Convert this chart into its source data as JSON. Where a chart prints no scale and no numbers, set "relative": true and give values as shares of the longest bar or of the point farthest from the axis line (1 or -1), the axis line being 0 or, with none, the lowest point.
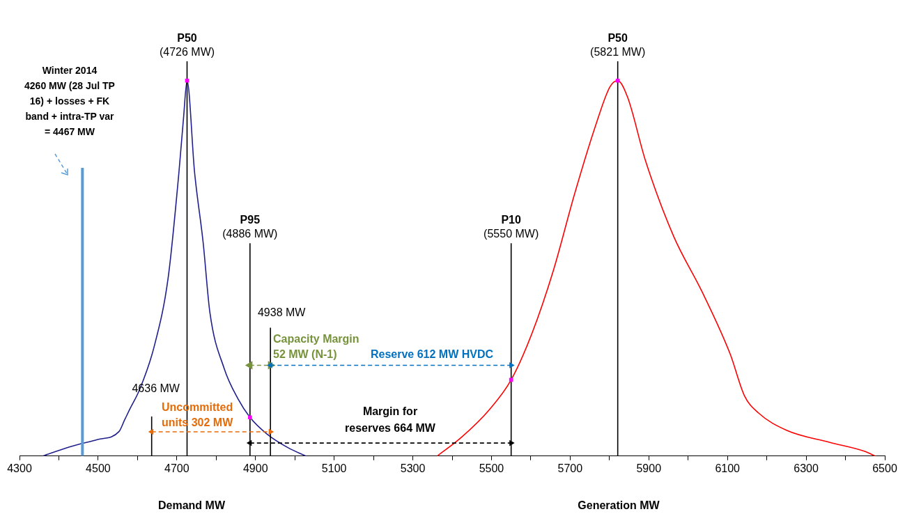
{
  "chart_data": {
    "type": "line",
    "relative": true,
    "xlim": [
      4300,
      6500
    ],
    "xticks": [
      4300,
      {
        "value": 4400,
        "label": null
      },
      4500,
      {
        "value": 4600,
        "label": null
      },
      4700,
      {
        "value": 4800,
        "label": null
      },
      4900,
      {
        "value": 5000,
        "label": null
      },
      5100,
      {
        "value": 5200,
        "label": null
      },
      5300,
      {
        "value": 5400,
        "label": null
      },
      5500,
      {
        "value": 5600,
        "label": null
      },
      5700,
      {
        "value": 5800,
        "label": null
      },
      5900,
      {
        "value": 6000,
        "label": null
      },
      6100,
      {
        "value": 6200,
        "label": null
      },
      6300,
      {
        "value": 6400,
        "label": null
      },
      6500
    ],
    "legend": false,
    "series": [
      {
        "type": "line",
        "color": "#1f1f8c",
        "marker": "none",
        "x": [
          4359,
          4427,
          4499,
          4553,
          4567,
          4580,
          4606,
          4642,
          4678,
          4705,
          4717,
          4726,
          4745,
          4767,
          4784,
          4820,
          4856,
          4886,
          4929,
          4983,
          5028
        ],
        "values": [
          0,
          0.023,
          0.042,
          0.062,
          0.091,
          0.118,
          0.17,
          0.276,
          0.452,
          0.715,
          0.856,
          0.951,
          0.72,
          0.54,
          0.364,
          0.223,
          0.144,
          0.098,
          0.056,
          0.021,
          0
        ]
      },
      {
        "type": "line",
        "color": "#ff0000",
        "marker": "none",
        "x": [
          5362,
          5423,
          5495,
          5550,
          5603,
          5657,
          5711,
          5765,
          5801,
          5821,
          5846,
          5891,
          5963,
          6035,
          6107,
          6143,
          6179,
          6251,
          6359,
          6449,
          6476
        ],
        "values": [
          0,
          0.047,
          0.118,
          0.193,
          0.311,
          0.469,
          0.663,
          0.838,
          0.935,
          0.951,
          0.909,
          0.75,
          0.557,
          0.417,
          0.258,
          0.153,
          0.109,
          0.065,
          0.035,
          0.012,
          0
        ]
      },
      {
        "type": "line",
        "color": "#5b9bd5",
        "marker": "none",
        "x": [
          4460,
          4460
        ],
        "values": [
          0,
          0.73
        ]
      },
      {
        "type": "line",
        "color": "#000000",
        "marker": "none",
        "x": [
          4726,
          4726
        ],
        "values": [
          0,
          1
        ]
      },
      {
        "type": "line",
        "color": "#000000",
        "marker": "none",
        "x": [
          5821,
          5821
        ],
        "values": [
          0,
          1
        ]
      },
      {
        "type": "line",
        "color": "#000000",
        "marker": "none",
        "x": [
          4886,
          4886
        ],
        "values": [
          0,
          0.539
        ]
      },
      {
        "type": "line",
        "color": "#000000",
        "marker": "none",
        "x": [
          5550,
          5550
        ],
        "values": [
          0,
          0.539
        ]
      },
      {
        "type": "line",
        "color": "#000000",
        "marker": "none",
        "x": [
          4938,
          4938
        ],
        "values": [
          0,
          0.325
        ]
      },
      {
        "type": "line",
        "color": "#000000",
        "marker": "none",
        "x": [
          4636,
          4636
        ],
        "values": [
          0,
          0.1
        ]
      },
      {
        "type": "line",
        "color": "#e46c0a",
        "marker": "triangle",
        "line_style": "dashed",
        "x": [
          4636,
          4938
        ],
        "values": [
          0.0615,
          0.0615
        ]
      },
      {
        "type": "line",
        "color": "#77933c",
        "marker": "triangle",
        "line_style": "dashed",
        "x": [
          4886,
          4938
        ],
        "values": [
          0.23,
          0.23
        ]
      },
      {
        "type": "line",
        "color": "#0070c0",
        "marker": "triangle",
        "line_style": "dashed",
        "x": [
          4938,
          5550
        ],
        "values": [
          0.23,
          0.23
        ]
      },
      {
        "type": "line",
        "color": "#000000",
        "marker": "triangle",
        "line_style": "dashed",
        "x": [
          4886,
          5550
        ],
        "values": [
          0.033,
          0.033
        ]
      },
      {
        "type": "scatter",
        "color": "#ff00ff",
        "marker": "square",
        "x": [
          4726,
          4886,
          5550,
          5821
        ],
        "values": [
          0.951,
          0.098,
          0.193,
          0.951
        ]
      }
    ],
    "annotations": [
      {
        "text": "P50\n(4726 MW)",
        "x": 4726,
        "y": 1
      },
      {
        "text": "P50\n(5821 MW)",
        "x": 5821,
        "y": 1
      },
      {
        "text": "P95\n(4886 MW)",
        "x": 4886,
        "y": 0.539
      },
      {
        "text": "P10\n(5550 MW)",
        "x": 5550,
        "y": 0.539
      },
      {
        "text": "4938 MW",
        "x": 4938,
        "y": 0.325
      },
      {
        "text": "4636 MW",
        "x": 4636,
        "y": 0.1
      },
      "Winter 2014\n4260 MW (28 Jul TP\n16) + losses + FK\nband + intra-TP var\n= 4467 MW",
      "Capacity Margin\n52 MW (N-1)",
      "Reserve 612 MW HVDC",
      "Uncommitted\nunits 302 MW",
      "Margin for\nreserves 664 MW",
      "Demand MW",
      "Generation MW"
    ]
  }
}
